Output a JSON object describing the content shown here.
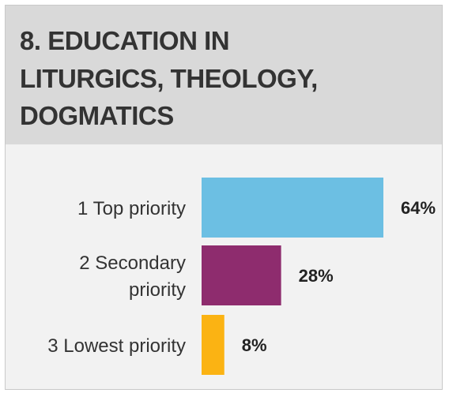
{
  "chart_data": {
    "type": "bar",
    "orientation": "horizontal",
    "title_lines": [
      "8. EDUCATION IN",
      "LITURGICS, THEOLOGY,",
      "DOGMATICS"
    ],
    "categories": [
      [
        "1 Top priority"
      ],
      [
        "2 Secondary",
        "priority"
      ],
      [
        "3 Lowest priority"
      ]
    ],
    "values": [
      64,
      28,
      8
    ],
    "value_labels": [
      "64%",
      "28%",
      "8%"
    ],
    "colors": [
      "#6cbfe3",
      "#8e2c6e",
      "#fbb313"
    ],
    "xlim": [
      0,
      64
    ],
    "grid": false,
    "legend": "none"
  }
}
